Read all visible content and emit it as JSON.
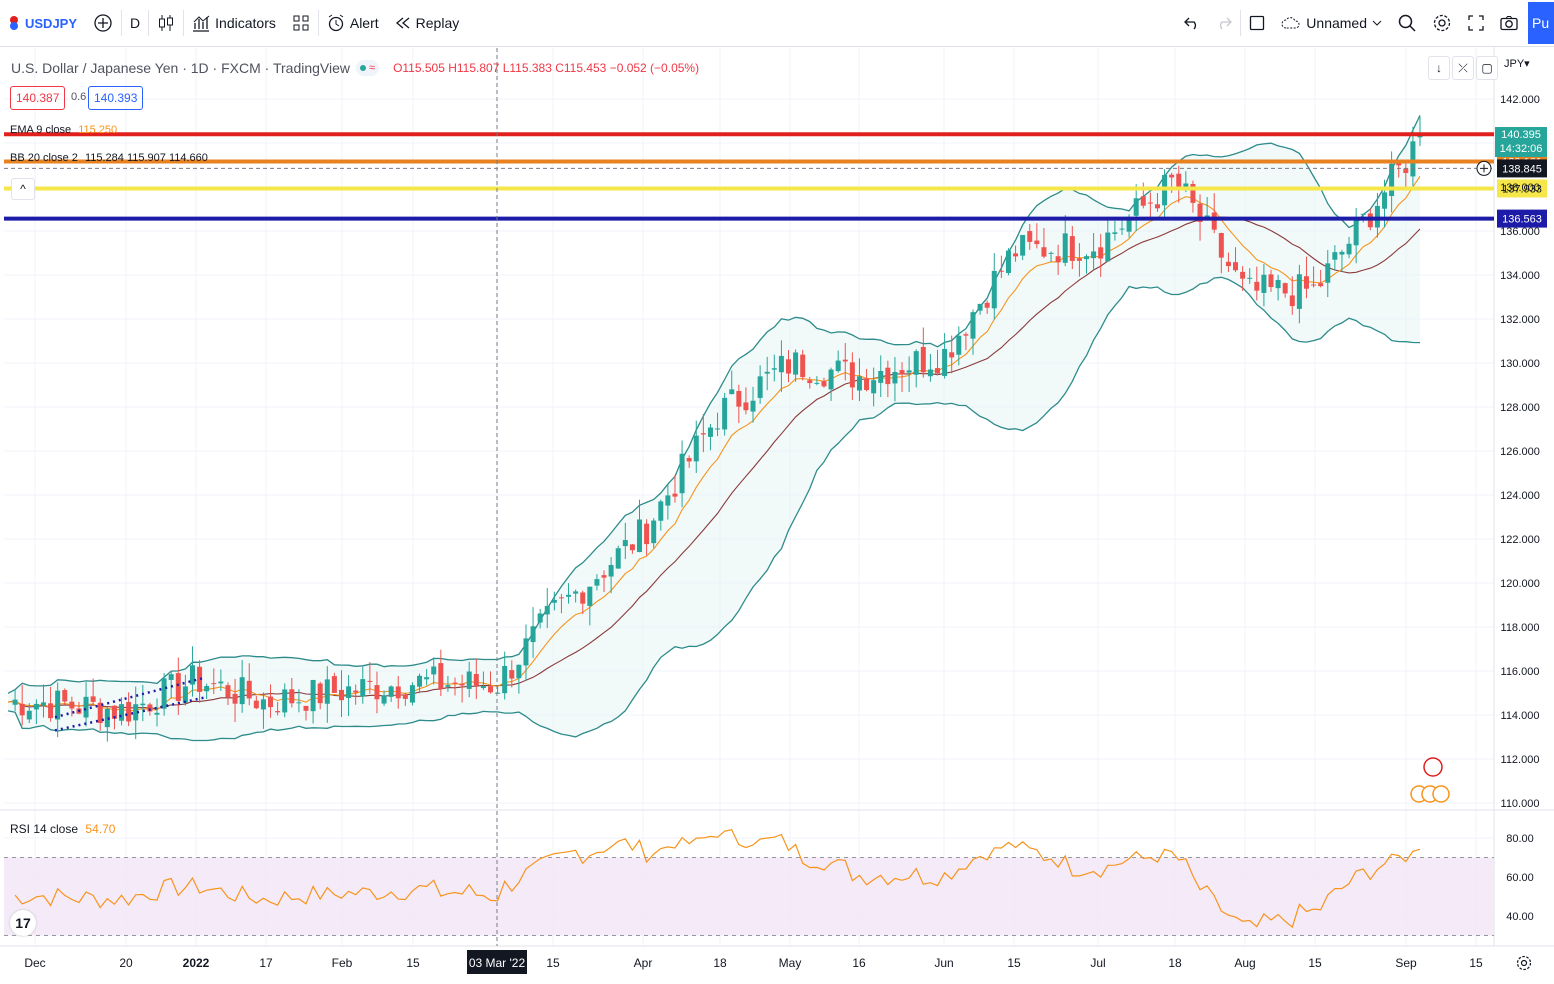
{
  "toolbar": {
    "symbol": "USDJPY",
    "interval": "D",
    "indicators": "Indicators",
    "alert": "Alert",
    "replay": "Replay",
    "layout_name": "Unnamed",
    "publish": "Pu"
  },
  "legend": {
    "title": "U.S. Dollar / Japanese Yen · 1D · FXCM · TradingView",
    "ohlc": "O115.505 H115.807 L115.383 C115.453 −0.052 (−0.05%)",
    "sell": "140.387",
    "spread": "0.6",
    "buy": "140.393"
  },
  "indicators": {
    "ema": "EMA 9 close",
    "ema_value": "115.250",
    "bb": "BB 20 close 2",
    "bb_values": "115.284  115.907  114.660",
    "rsi": "RSI 14 close",
    "rsi_value": "54.70"
  },
  "currency": "JPY",
  "current_price": "140.395",
  "countdown": "14:32:06",
  "crosshair_price": "138.845",
  "crosshair_date": "03 Mar '22",
  "colors": {
    "up": "#26a69a",
    "down": "#ef5350",
    "ema": "#f7941d",
    "bb_band": "#2e8b8b",
    "bb_basis": "#8b3a3a",
    "rsi": "#f7941d",
    "rsi_band": "#f3e5f5"
  },
  "chart_data": {
    "type": "candlestick",
    "title": "U.S. Dollar / Japanese Yen · 1D · FXCM · TradingView",
    "y_axis": {
      "unit": "JPY",
      "ticks": [
        110,
        112,
        114,
        116,
        118,
        120,
        122,
        124,
        126,
        128,
        130,
        132,
        134,
        136,
        138,
        140,
        142
      ],
      "ylim": [
        109.6,
        143.2
      ]
    },
    "x_ticks": [
      "Dec",
      "20",
      "2022",
      "17",
      "Feb",
      "15",
      "03 Mar '22",
      "15",
      "Apr",
      "18",
      "May",
      "16",
      "Jun",
      "15",
      "Jul",
      "18",
      "Aug",
      "15",
      "Sep",
      "15"
    ],
    "price_path": [
      [
        "Dec",
        114.6
      ],
      [
        "20",
        114.2
      ],
      [
        "2022",
        115.6
      ],
      [
        "17",
        114.6
      ],
      [
        "Feb",
        115.1
      ],
      [
        "15",
        115.5
      ],
      [
        "03 Mar '22",
        115.4
      ],
      [
        "15",
        118.6
      ],
      [
        "Apr",
        122.3
      ],
      [
        "18",
        127.8
      ],
      [
        "May",
        130.0
      ],
      [
        "16",
        129.4
      ],
      [
        "Jun",
        130.4
      ],
      [
        "15",
        135.1
      ],
      [
        "Jul",
        135.4
      ],
      [
        "18",
        138.3
      ],
      [
        "Aug",
        133.2
      ],
      [
        "15",
        133.3
      ],
      [
        "Sep",
        139.2
      ],
      [
        "current",
        140.4
      ]
    ],
    "horizontal_lines": [
      {
        "price": "139.161",
        "color": "#e8811f"
      },
      {
        "price": "137.933",
        "color": "#f5e64a"
      },
      {
        "price": "136.563",
        "color": "#1c1ca8"
      },
      {
        "price": "140.395",
        "color": "#e0201c"
      }
    ],
    "rsi": {
      "levels": [
        "80.00",
        "60.00",
        "40.00"
      ],
      "upper": 70,
      "lower": 30,
      "last": "54.70"
    }
  }
}
